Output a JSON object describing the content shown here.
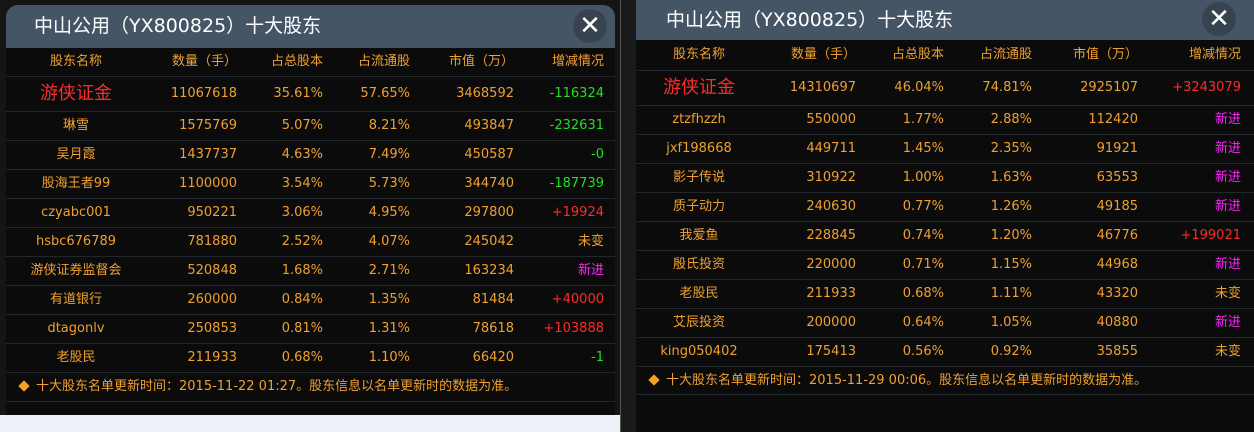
{
  "colors": {
    "header_bg": "#465566",
    "body_bg": "#0b0b0b",
    "text": "#f0a030",
    "increase": "#ff2a2a",
    "decrease": "#20e020",
    "new": "#ff22ff"
  },
  "panels": [
    {
      "title": "中山公用（YX800825）十大股东",
      "close_icon": "close-icon",
      "columns": [
        "股东名称",
        "数量（手）",
        "占总股本",
        "占流通股",
        "市值（万）",
        "增减情况"
      ],
      "rows": [
        {
          "name": "游侠证金",
          "qty": "11067618",
          "total_pct": "35.61%",
          "float_pct": "57.65%",
          "market_value": "3468592",
          "change": "-116324",
          "change_type": "decrease"
        },
        {
          "name": "琳雪",
          "qty": "1575769",
          "total_pct": "5.07%",
          "float_pct": "8.21%",
          "market_value": "493847",
          "change": "-232631",
          "change_type": "decrease"
        },
        {
          "name": "吴月霞",
          "qty": "1437737",
          "total_pct": "4.63%",
          "float_pct": "7.49%",
          "market_value": "450587",
          "change": "-0",
          "change_type": "decrease"
        },
        {
          "name": "股海王者99",
          "qty": "1100000",
          "total_pct": "3.54%",
          "float_pct": "5.73%",
          "market_value": "344740",
          "change": "-187739",
          "change_type": "decrease"
        },
        {
          "name": "czyabc001",
          "qty": "950221",
          "total_pct": "3.06%",
          "float_pct": "4.95%",
          "market_value": "297800",
          "change": "+19924",
          "change_type": "increase"
        },
        {
          "name": "hsbc676789",
          "qty": "781880",
          "total_pct": "2.52%",
          "float_pct": "4.07%",
          "market_value": "245042",
          "change": "未变",
          "change_type": "unchanged"
        },
        {
          "name": "游侠证券监督会",
          "qty": "520848",
          "total_pct": "1.68%",
          "float_pct": "2.71%",
          "market_value": "163234",
          "change": "新进",
          "change_type": "new"
        },
        {
          "name": "有道银行",
          "qty": "260000",
          "total_pct": "0.84%",
          "float_pct": "1.35%",
          "market_value": "81484",
          "change": "+40000",
          "change_type": "increase"
        },
        {
          "name": "dtagonlv",
          "qty": "250853",
          "total_pct": "0.81%",
          "float_pct": "1.31%",
          "market_value": "78618",
          "change": "+103888",
          "change_type": "increase"
        },
        {
          "name": "老股民",
          "qty": "211933",
          "total_pct": "0.68%",
          "float_pct": "1.10%",
          "market_value": "66420",
          "change": "-1",
          "change_type": "decrease"
        }
      ],
      "footer": "十大股东名单更新时间：2015-11-22 01:27。股东信息以名单更新时的数据为准。"
    },
    {
      "title": "中山公用（YX800825）十大股东",
      "close_icon": "close-icon",
      "columns": [
        "股东名称",
        "数量（手）",
        "占总股本",
        "占流通股",
        "市值（万）",
        "增减情况"
      ],
      "rows": [
        {
          "name": "游侠证金",
          "qty": "14310697",
          "total_pct": "46.04%",
          "float_pct": "74.81%",
          "market_value": "2925107",
          "change": "+3243079",
          "change_type": "increase"
        },
        {
          "name": "ztzfhzzh",
          "qty": "550000",
          "total_pct": "1.77%",
          "float_pct": "2.88%",
          "market_value": "112420",
          "change": "新进",
          "change_type": "new"
        },
        {
          "name": "jxf198668",
          "qty": "449711",
          "total_pct": "1.45%",
          "float_pct": "2.35%",
          "market_value": "91921",
          "change": "新进",
          "change_type": "new"
        },
        {
          "name": "影子传说",
          "qty": "310922",
          "total_pct": "1.00%",
          "float_pct": "1.63%",
          "market_value": "63553",
          "change": "新进",
          "change_type": "new"
        },
        {
          "name": "质子动力",
          "qty": "240630",
          "total_pct": "0.77%",
          "float_pct": "1.26%",
          "market_value": "49185",
          "change": "新进",
          "change_type": "new"
        },
        {
          "name": "我爱鱼",
          "qty": "228845",
          "total_pct": "0.74%",
          "float_pct": "1.20%",
          "market_value": "46776",
          "change": "+199021",
          "change_type": "increase"
        },
        {
          "name": "殷氏投资",
          "qty": "220000",
          "total_pct": "0.71%",
          "float_pct": "1.15%",
          "market_value": "44968",
          "change": "新进",
          "change_type": "new"
        },
        {
          "name": "老股民",
          "qty": "211933",
          "total_pct": "0.68%",
          "float_pct": "1.11%",
          "market_value": "43320",
          "change": "未变",
          "change_type": "unchanged"
        },
        {
          "name": "艾辰投资",
          "qty": "200000",
          "total_pct": "0.64%",
          "float_pct": "1.05%",
          "market_value": "40880",
          "change": "新进",
          "change_type": "new"
        },
        {
          "name": "king050402",
          "qty": "175413",
          "total_pct": "0.56%",
          "float_pct": "0.92%",
          "market_value": "35855",
          "change": "未变",
          "change_type": "unchanged"
        }
      ],
      "footer": "十大股东名单更新时间：2015-11-29 00:06。股东信息以名单更新时的数据为准。"
    }
  ]
}
